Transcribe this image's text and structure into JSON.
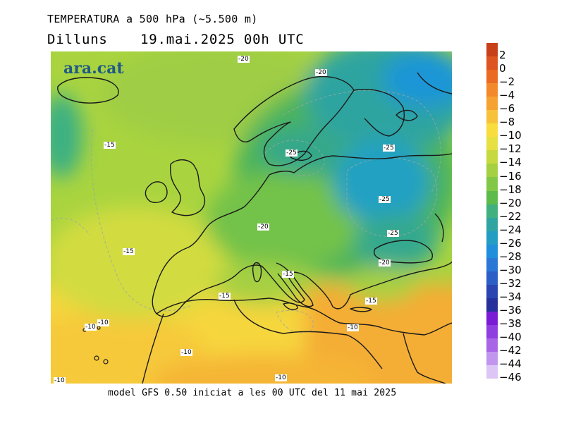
{
  "header": {
    "title": "TEMPERATURA a 500 hPa (~5.500 m)",
    "day": "Dilluns",
    "date": "19.mai.2025 00h UTC"
  },
  "footer": "model GFS 0.50 iniciat a les 00 UTC del 11 mai 2025",
  "logo": "ara.cat",
  "legend": {
    "labels": [
      "2",
      "0",
      "−2",
      "−4",
      "−6",
      "−8",
      "−10",
      "−12",
      "−14",
      "−16",
      "−18",
      "−20",
      "−22",
      "−24",
      "−26",
      "−28",
      "−30",
      "−32",
      "−34",
      "−36",
      "−38",
      "−40",
      "−42",
      "−44",
      "−46"
    ],
    "colors": [
      "#c8401a",
      "#dd5520",
      "#eb6a24",
      "#f28a2c",
      "#f5a233",
      "#f7c23a",
      "#f9dd3e",
      "#e6e043",
      "#c6d93f",
      "#a4d042",
      "#82c846",
      "#5dbb4c",
      "#3fb07e",
      "#2fa4a0",
      "#239dc3",
      "#1f8fdc",
      "#2a77d6",
      "#2d5ec6",
      "#2a45b0",
      "#26309a",
      "#7a1bd6",
      "#8f3ee0",
      "#a866e6",
      "#c295ee",
      "#ddc6f6"
    ]
  },
  "isotherms": [
    "-20",
    "-20",
    "-15",
    "-25",
    "-25",
    "-25",
    "-25",
    "-20",
    "-15",
    "-15",
    "-15",
    "-20",
    "-15",
    "-10",
    "-10",
    "-10",
    "-10",
    "-10",
    "-10"
  ]
}
